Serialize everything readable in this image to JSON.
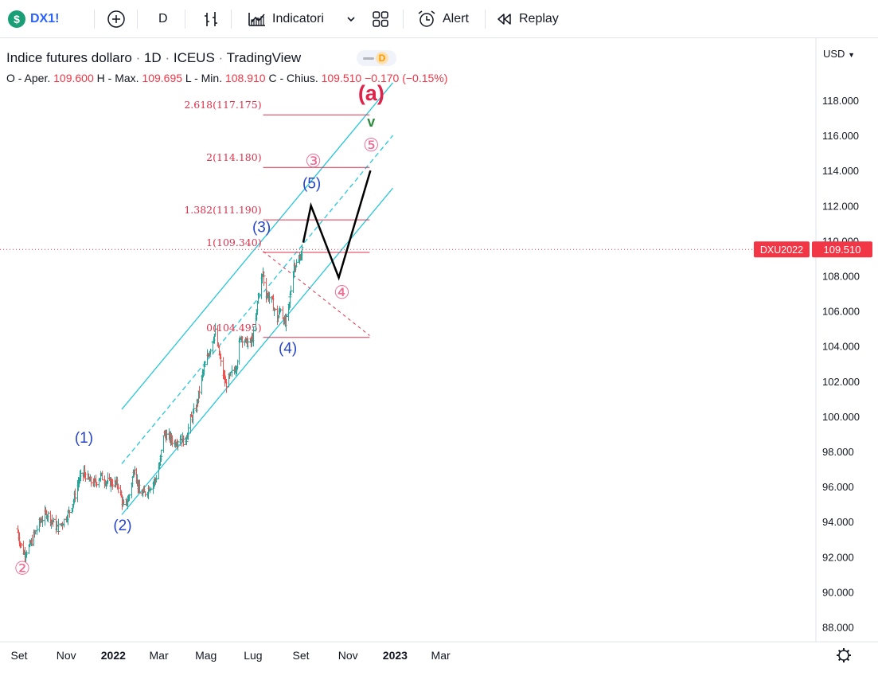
{
  "toolbar": {
    "symbol": "DX1!",
    "symbol_badge": "$",
    "interval": "D",
    "indicators_label": "Indicatori",
    "alert_label": "Alert",
    "replay_label": "Replay",
    "icons": [
      "plus-circle-icon",
      "bar-style-icon",
      "indicators-icon",
      "chevron-down-icon",
      "layout-icon",
      "alarm-clock-icon",
      "replay-icon"
    ]
  },
  "legend": {
    "name": "Indice futures dollaro",
    "interval": "1D",
    "exchange": "ICEUS",
    "source": "TradingView",
    "badge": "D",
    "sep": "·",
    "open_label": "O - Aper.",
    "open": "109.600",
    "high_label": "H - Max.",
    "high": "109.695",
    "low_label": "L - Min.",
    "low": "108.910",
    "close_label": "C - Chius.",
    "close": "109.510",
    "change": "−0.170",
    "change_pct": "(−0.15%)"
  },
  "currency": "USD",
  "colors": {
    "up": "#26a69a",
    "down": "#ef5350",
    "channel": "#26c6da",
    "fib": "#e0314b",
    "wave_blue": "#2745c9",
    "wave_pink": "#ec6d94",
    "wave_red": "#e0224a",
    "projection": "#000000",
    "price_tag": "#f23645",
    "arrow_green": "#2e8b3d"
  },
  "chart_data": {
    "type": "candlestick",
    "symbol": "DXU2022",
    "x_ticks": [
      "Set",
      "Nov",
      "2022",
      "Mar",
      "Mag",
      "Lug",
      "Set",
      "Nov",
      "2023",
      "Mar"
    ],
    "y_ticks": [
      "88.000",
      "90.000",
      "92.000",
      "94.000",
      "96.000",
      "98.000",
      "100.000",
      "102.000",
      "104.000",
      "106.000",
      "108.000",
      "110.000",
      "112.000",
      "114.000",
      "116.000",
      "118.000"
    ],
    "ylim": [
      86.9,
      120.6
    ],
    "last_price": 109.51,
    "last_price_label": "109.510",
    "price_key": [
      [
        "2021-08-29",
        93.6
      ],
      [
        "2021-09-03",
        92.6
      ],
      [
        "2021-09-07",
        92.2
      ],
      [
        "2021-09-14",
        92.6
      ],
      [
        "2021-09-20",
        93.2
      ],
      [
        "2021-09-28",
        94.0
      ],
      [
        "2021-10-06",
        94.5
      ],
      [
        "2021-10-14",
        94.0
      ],
      [
        "2021-10-20",
        93.6
      ],
      [
        "2021-10-28",
        94.0
      ],
      [
        "2021-11-05",
        94.6
      ],
      [
        "2021-11-10",
        95.2
      ],
      [
        "2021-11-17",
        96.4
      ],
      [
        "2021-11-24",
        96.8
      ],
      [
        "2021-12-01",
        96.3
      ],
      [
        "2021-12-08",
        96.2
      ],
      [
        "2021-12-15",
        96.6
      ],
      [
        "2021-12-22",
        96.3
      ],
      [
        "2022-01-01",
        96.2
      ],
      [
        "2022-01-07",
        96.1
      ],
      [
        "2022-01-14",
        94.8
      ],
      [
        "2022-01-20",
        95.3
      ],
      [
        "2022-01-28",
        97.2
      ],
      [
        "2022-02-04",
        95.6
      ],
      [
        "2022-02-10",
        95.6
      ],
      [
        "2022-02-17",
        96.0
      ],
      [
        "2022-02-24",
        96.4
      ],
      [
        "2022-03-03",
        97.6
      ],
      [
        "2022-03-07",
        99.0
      ],
      [
        "2022-03-14",
        98.8
      ],
      [
        "2022-03-21",
        98.5
      ],
      [
        "2022-03-28",
        98.8
      ],
      [
        "2022-04-04",
        98.5
      ],
      [
        "2022-04-10",
        99.7
      ],
      [
        "2022-04-18",
        100.5
      ],
      [
        "2022-04-26",
        102.4
      ],
      [
        "2022-05-05",
        103.8
      ],
      [
        "2022-05-13",
        104.8
      ],
      [
        "2022-05-20",
        103.0
      ],
      [
        "2022-05-26",
        101.8
      ],
      [
        "2022-06-01",
        102.3
      ],
      [
        "2022-06-08",
        102.8
      ],
      [
        "2022-06-15",
        104.6
      ],
      [
        "2022-06-22",
        104.2
      ],
      [
        "2022-06-28",
        104.2
      ],
      [
        "2022-07-03",
        105.0
      ],
      [
        "2022-07-07",
        106.9
      ],
      [
        "2022-07-13",
        108.2
      ],
      [
        "2022-07-18",
        107.0
      ],
      [
        "2022-07-25",
        106.6
      ],
      [
        "2022-08-01",
        105.5
      ],
      [
        "2022-08-05",
        106.2
      ],
      [
        "2022-08-11",
        105.2
      ],
      [
        "2022-08-16",
        106.4
      ],
      [
        "2022-08-23",
        108.6
      ],
      [
        "2022-08-29",
        108.8
      ],
      [
        "2022-09-02",
        109.5
      ]
    ],
    "channel": {
      "upper": [
        [
          "2022-01-12",
          100.4
        ],
        [
          "2022-12-29",
          119.0
        ]
      ],
      "mid": [
        [
          "2022-01-12",
          97.3
        ],
        [
          "2022-12-29",
          116.0
        ]
      ],
      "lower": [
        [
          "2022-01-12",
          94.4
        ],
        [
          "2022-12-29",
          113.0
        ]
      ]
    },
    "fib_levels": [
      {
        "label": "2.618(117.175)",
        "price": 117.175
      },
      {
        "label": "2(114.180)",
        "price": 114.18
      },
      {
        "label": "1.382(111.190)",
        "price": 111.19
      },
      {
        "label": "1(109.340)",
        "price": 109.34
      },
      {
        "label": "0(104.495)",
        "price": 104.495
      }
    ],
    "fib_extent": [
      "2022-07-14",
      "2022-11-29"
    ],
    "fib_label_date": "2022-07-12",
    "fib_diagonal": [
      [
        "2022-07-14",
        109.4
      ],
      [
        "2022-11-29",
        104.6
      ]
    ],
    "projection": [
      [
        "2022-09-04",
        109.9
      ],
      [
        "2022-09-14",
        112.0
      ],
      [
        "2022-10-20",
        107.9
      ],
      [
        "2022-11-30",
        114.0
      ]
    ],
    "wave_labels": [
      {
        "text": "②",
        "date": "2021-09-05",
        "price": 91.0,
        "style": "pink"
      },
      {
        "text": "(1)",
        "date": "2021-11-24",
        "price": 98.5,
        "style": "blue"
      },
      {
        "text": "(2)",
        "date": "2022-01-13",
        "price": 93.5,
        "style": "blue"
      },
      {
        "text": "(3)",
        "date": "2022-07-12",
        "price": 110.5,
        "style": "blue"
      },
      {
        "text": "(4)",
        "date": "2022-08-15",
        "price": 103.6,
        "style": "blue"
      },
      {
        "text": "(5)",
        "date": "2022-09-15",
        "price": 113.0,
        "style": "blue"
      },
      {
        "text": "③",
        "date": "2022-09-17",
        "price": 114.2,
        "style": "pink"
      },
      {
        "text": "④",
        "date": "2022-10-24",
        "price": 106.7,
        "style": "pink"
      },
      {
        "text": "⑤",
        "date": "2022-12-01",
        "price": 115.1,
        "style": "pink"
      },
      {
        "text": "(a)",
        "date": "2022-12-01",
        "price": 118.0,
        "style": "red"
      },
      {
        "text": "v",
        "date": "2022-12-01",
        "price": 116.5,
        "style": "green"
      }
    ]
  }
}
